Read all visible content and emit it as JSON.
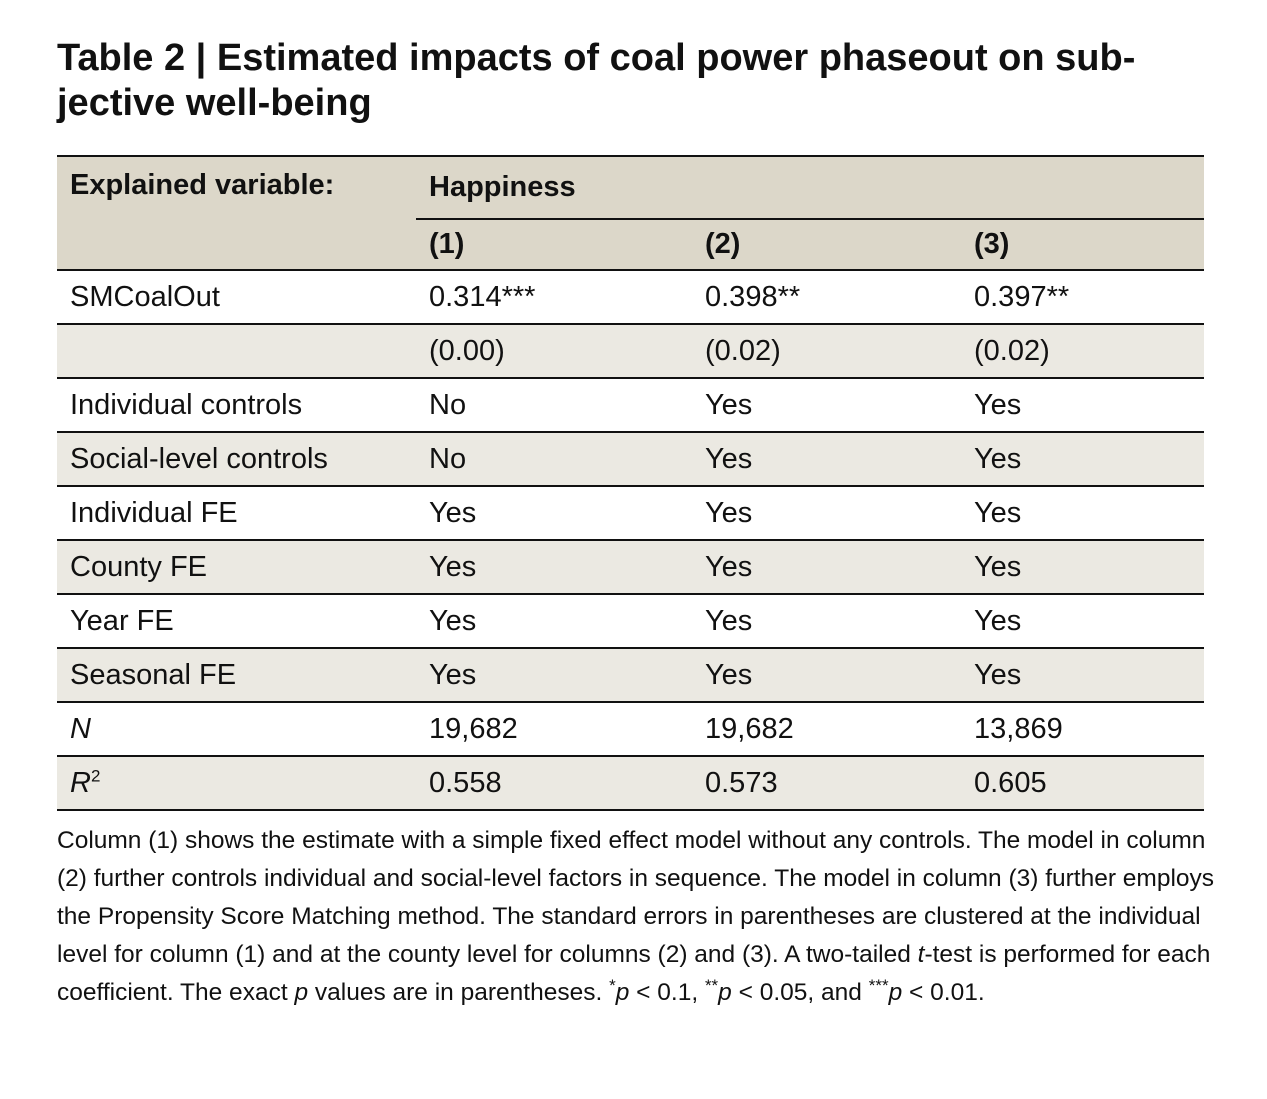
{
  "title": "Table 2 | Estimated impacts of coal power phaseout on sub-jective well-being",
  "table": {
    "explained_label": "Explained variable:",
    "dependent_variable": "Happiness",
    "columns": [
      "(1)",
      "(2)",
      "(3)"
    ],
    "rows": [
      {
        "label": "SMCoalOut",
        "values": [
          "0.314***",
          "0.398**",
          "0.397**"
        ]
      },
      {
        "label": "",
        "values": [
          "(0.00)",
          "(0.02)",
          "(0.02)"
        ]
      },
      {
        "label": "Individual controls",
        "values": [
          "No",
          "Yes",
          "Yes"
        ]
      },
      {
        "label": "Social-level controls",
        "values": [
          "No",
          "Yes",
          "Yes"
        ]
      },
      {
        "label": "Individual FE",
        "values": [
          "Yes",
          "Yes",
          "Yes"
        ]
      },
      {
        "label": "County FE",
        "values": [
          "Yes",
          "Yes",
          "Yes"
        ]
      },
      {
        "label": "Year FE",
        "values": [
          "Yes",
          "Yes",
          "Yes"
        ]
      },
      {
        "label": "Seasonal FE",
        "values": [
          "Yes",
          "Yes",
          "Yes"
        ]
      },
      {
        "label": "N",
        "values": [
          "19,682",
          "19,682",
          "13,869"
        ]
      },
      {
        "label": "R",
        "label_sup": "2",
        "values": [
          "0.558",
          "0.573",
          "0.605"
        ]
      }
    ]
  },
  "note": {
    "part1": "Column (1) shows the estimate with a simple fixed effect model without any controls. The model in column (2) further controls individual and social-level factors in sequence. The model in column (3) further employs the Propensity Score Matching method. The standard errors in parentheses are clustered at the individual level for column (1) and at the county level for columns (2) and (3). A two-tailed ",
    "t": "t",
    "part2": "-test is performed for each coefficient. The exact ",
    "p": "p",
    "part3": " values are in parentheses. ",
    "sig1_stars": "*",
    "sig1_p": "p",
    "sig1_rest": " < 0.1, ",
    "sig2_stars": "**",
    "sig2_p": "p",
    "sig2_rest": " < 0.05, and ",
    "sig3_stars": "***",
    "sig3_p": "p",
    "sig3_rest": " < 0.01."
  },
  "colors": {
    "header_bg": "#dcd7c9",
    "row_alt_bg": "#ebe9e2",
    "rule": "#111111"
  }
}
